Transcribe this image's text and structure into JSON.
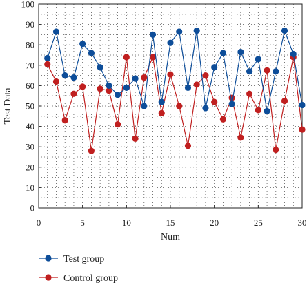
{
  "chart_data": {
    "type": "line",
    "title": "",
    "xlabel": "Num",
    "ylabel": "Test Data",
    "xlim": [
      0,
      30
    ],
    "ylim": [
      0,
      100
    ],
    "xticks": [
      0,
      5,
      10,
      15,
      20,
      25,
      30
    ],
    "yticks": [
      0,
      10,
      20,
      30,
      40,
      50,
      60,
      70,
      80,
      90,
      100
    ],
    "grid": true,
    "legend": "bottom-left",
    "x": [
      1,
      2,
      3,
      4,
      5,
      6,
      7,
      8,
      9,
      10,
      11,
      12,
      13,
      14,
      15,
      16,
      17,
      18,
      19,
      20,
      21,
      22,
      23,
      24,
      25,
      26,
      27,
      28,
      29,
      30
    ],
    "series": [
      {
        "name": "Test group",
        "color": "#0d4d99",
        "values": [
          73.5,
          86.5,
          65,
          64,
          80.5,
          76,
          69,
          60,
          55.5,
          59,
          63.5,
          50,
          85,
          52,
          81,
          86.5,
          59,
          87,
          49,
          69,
          76,
          51,
          76.5,
          67,
          73,
          47.5,
          67,
          87,
          75.5,
          50.5
        ]
      },
      {
        "name": "Control group",
        "color": "#c01f1f",
        "values": [
          70.5,
          62,
          43,
          56,
          59.5,
          28,
          58.5,
          57.5,
          41,
          74,
          34,
          64,
          74,
          46.5,
          65.5,
          50,
          30.5,
          60.5,
          65,
          52,
          43.5,
          54,
          34.5,
          56,
          48,
          67.5,
          28.5,
          52.5,
          74,
          38.5
        ]
      }
    ]
  }
}
